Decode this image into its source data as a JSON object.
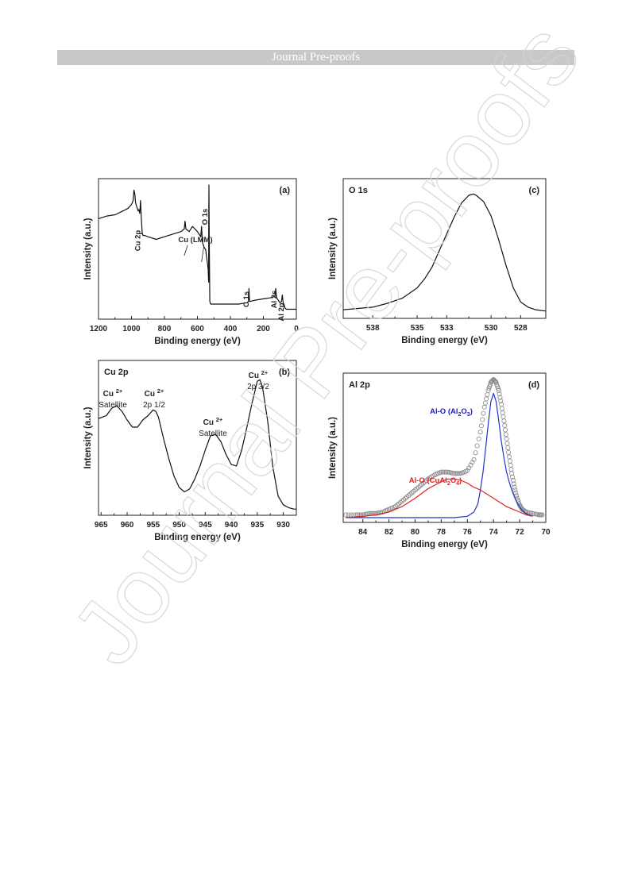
{
  "header": {
    "title": "Journal Pre-proofs"
  },
  "watermark": {
    "text": "Journal Pre-proofs"
  },
  "chart_data": [
    {
      "id": "a",
      "type": "line",
      "panel_label": "(a)",
      "title": "",
      "xlabel": "Binding energy (eV)",
      "ylabel": "Intensity (a.u.)",
      "xlim": [
        1200,
        0
      ],
      "reversed_x": true,
      "ylim": [
        0,
        100
      ],
      "xticks": [
        1200,
        1000,
        800,
        600,
        400,
        200,
        0
      ],
      "series": [
        {
          "x": [
            1200,
            1150,
            1100,
            1050,
            1020,
            1000,
            990,
            985,
            980,
            975,
            960,
            955,
            950,
            945,
            940,
            935,
            930,
            920,
            900,
            850,
            800,
            750,
            700,
            680,
            675,
            670,
            650,
            630,
            600,
            580,
            575,
            570,
            560,
            550,
            545,
            540,
            535,
            532,
            531,
            530,
            528,
            525,
            520,
            500,
            450,
            400,
            350,
            300,
            290,
            287,
            285,
            283,
            280,
            250,
            200,
            150,
            130,
            125,
            120,
            115,
            110,
            100,
            90,
            85,
            80,
            75,
            70,
            60,
            40,
            20,
            0
          ],
          "y": [
            74,
            76,
            77,
            80,
            82,
            85,
            88,
            96,
            93,
            86,
            80,
            81,
            78,
            88,
            74,
            63,
            61,
            61,
            60,
            58,
            60,
            62,
            64,
            66,
            72,
            66,
            64,
            68,
            64,
            60,
            68,
            56,
            52,
            50,
            45,
            40,
            35,
            25,
            80,
            100,
            55,
            10,
            8,
            8,
            8,
            8,
            8,
            9,
            10,
            20,
            12,
            10,
            10,
            11,
            12,
            13,
            14,
            20,
            13,
            12,
            11,
            9,
            10,
            15,
            9,
            8,
            5,
            4,
            4,
            4,
            4
          ]
        }
      ],
      "annotations": [
        {
          "label": "O 1s",
          "x": 531
        },
        {
          "label": "Cu 2p",
          "x": 935
        },
        {
          "label": "Cu (LMM)",
          "x": 620
        },
        {
          "label": "C 1s",
          "x": 285
        },
        {
          "label": "Al 2s",
          "x": 119
        },
        {
          "label": "Al 2p",
          "x": 74
        }
      ]
    },
    {
      "id": "c",
      "type": "line",
      "panel_label": "(c)",
      "title": "O 1s",
      "xlabel": "Binding energy (eV)",
      "ylabel": "Intensity (a.u.)",
      "xlim": [
        540,
        526.3
      ],
      "reversed_x": true,
      "ylim": [
        0,
        100
      ],
      "xticks": [
        538,
        535,
        533,
        530,
        528
      ],
      "series": [
        {
          "x": [
            540,
            539,
            538,
            537,
            536,
            535,
            534.5,
            534,
            533.5,
            533,
            532.5,
            532,
            531.5,
            531.2,
            531,
            530.5,
            530,
            529.5,
            529,
            528.5,
            528,
            527.5,
            527,
            526.3
          ],
          "y": [
            3,
            4,
            5,
            8,
            12,
            20,
            27,
            36,
            49,
            62,
            75,
            86,
            92,
            93,
            92,
            87,
            76,
            58,
            38,
            20,
            9,
            5,
            3,
            2
          ]
        }
      ]
    },
    {
      "id": "b",
      "type": "line",
      "panel_label": "(b)",
      "title": "Cu 2p",
      "xlabel": "Binding energy (eV)",
      "ylabel": "Intensity (a.u.)",
      "xlim": [
        965.5,
        927.5
      ],
      "reversed_x": true,
      "ylim": [
        0,
        100
      ],
      "xticks": [
        965,
        960,
        955,
        950,
        945,
        940,
        935,
        930
      ],
      "series": [
        {
          "x": [
            965.5,
            964,
            963,
            962,
            961,
            960,
            959,
            958,
            957,
            956,
            955,
            954.5,
            954,
            953,
            952,
            951,
            950,
            949,
            948,
            947,
            946,
            945,
            944,
            943,
            942,
            941,
            940,
            939,
            938,
            937,
            936,
            935,
            934.5,
            934,
            933,
            932,
            931,
            930,
            929,
            928,
            927.5
          ],
          "y": [
            64,
            66,
            71,
            73,
            69,
            63,
            58,
            58,
            63,
            66,
            70,
            69,
            65,
            50,
            36,
            24,
            16,
            13,
            15,
            22,
            31,
            42,
            52,
            53,
            48,
            39,
            32,
            31,
            42,
            58,
            75,
            90,
            91,
            86,
            62,
            30,
            10,
            4,
            2,
            1,
            1
          ]
        }
      ],
      "annotations": [
        {
          "label": "Cu",
          "sup": "2+",
          "sub": "Satellite"
        },
        {
          "label": "Cu",
          "sup": "2+",
          "sub": "2p 1/2"
        },
        {
          "label": "Cu",
          "sup": "2+",
          "sub": "Satellite"
        },
        {
          "label": "Cu",
          "sup": "2+",
          "sub": "2p 3/2"
        }
      ]
    },
    {
      "id": "d",
      "type": "line",
      "panel_label": "(d)",
      "title": "Al 2p",
      "xlabel": "Binding energy (eV)",
      "ylabel": "Intensity (a.u.)",
      "xlim": [
        85.5,
        70
      ],
      "reversed_x": true,
      "ylim": [
        0,
        100
      ],
      "xticks": [
        84,
        82,
        80,
        78,
        76,
        74,
        72,
        70
      ],
      "series": [
        {
          "name": "raw",
          "style": "open-circles",
          "color": "#888888",
          "x": [
            85.3,
            84.5,
            84,
            83.5,
            83,
            82.5,
            82,
            81.5,
            81,
            80.5,
            80,
            79.5,
            79,
            78.5,
            78,
            77.5,
            77,
            76.5,
            76,
            75.5,
            75,
            74.7,
            74.4,
            74.2,
            74,
            73.8,
            73.6,
            73.4,
            73.2,
            73,
            72.8,
            72.6,
            72.4,
            72.2,
            72,
            71.8,
            71.5,
            71,
            70.5,
            70.2
          ],
          "y": [
            2,
            2,
            2,
            3,
            3,
            4,
            6,
            8,
            12,
            16,
            20,
            24,
            28,
            31,
            33,
            33,
            32,
            32,
            34,
            42,
            62,
            80,
            92,
            98,
            100,
            98,
            92,
            82,
            70,
            57,
            44,
            32,
            22,
            14,
            9,
            6,
            4,
            3,
            2,
            2
          ]
        },
        {
          "name": "Al-O (Al2O3)",
          "color": "#2233cc",
          "x": [
            85.3,
            77,
            76,
            75.5,
            75.2,
            75,
            74.8,
            74.6,
            74.4,
            74.2,
            74,
            73.8,
            73.6,
            73.4,
            73.2,
            73,
            72.8,
            72.6,
            72.4,
            72.2,
            72,
            71.8,
            71.5,
            71
          ],
          "y": [
            0,
            0,
            1,
            4,
            10,
            20,
            33,
            50,
            68,
            84,
            90,
            84,
            70,
            55,
            43,
            33,
            26,
            20,
            15,
            11,
            8,
            5,
            3,
            1
          ]
        },
        {
          "name": "Al-O (CuAl2O4)",
          "color": "#dd2222",
          "x": [
            85.3,
            84,
            83,
            82,
            81,
            80,
            79,
            78,
            77.5,
            77,
            76.5,
            76,
            75.5,
            75,
            74.5,
            74,
            73.5,
            73,
            72.5,
            72,
            71.5,
            71
          ],
          "y": [
            0,
            1,
            2,
            4,
            8,
            14,
            21,
            26,
            28,
            28,
            27,
            25,
            22,
            20,
            17,
            14,
            11,
            8,
            6,
            4,
            2,
            1
          ]
        }
      ],
      "legend_text": [
        {
          "main": "Al-O (Al",
          "sub1": "2",
          "mid": "O",
          "sub2": "3",
          "end": ")",
          "color": "#1a1acc"
        },
        {
          "main": "Al-O (CuAl",
          "sub1": "2",
          "mid": "O",
          "sub2": "4",
          "end": ")",
          "color": "#e02020"
        }
      ]
    }
  ]
}
